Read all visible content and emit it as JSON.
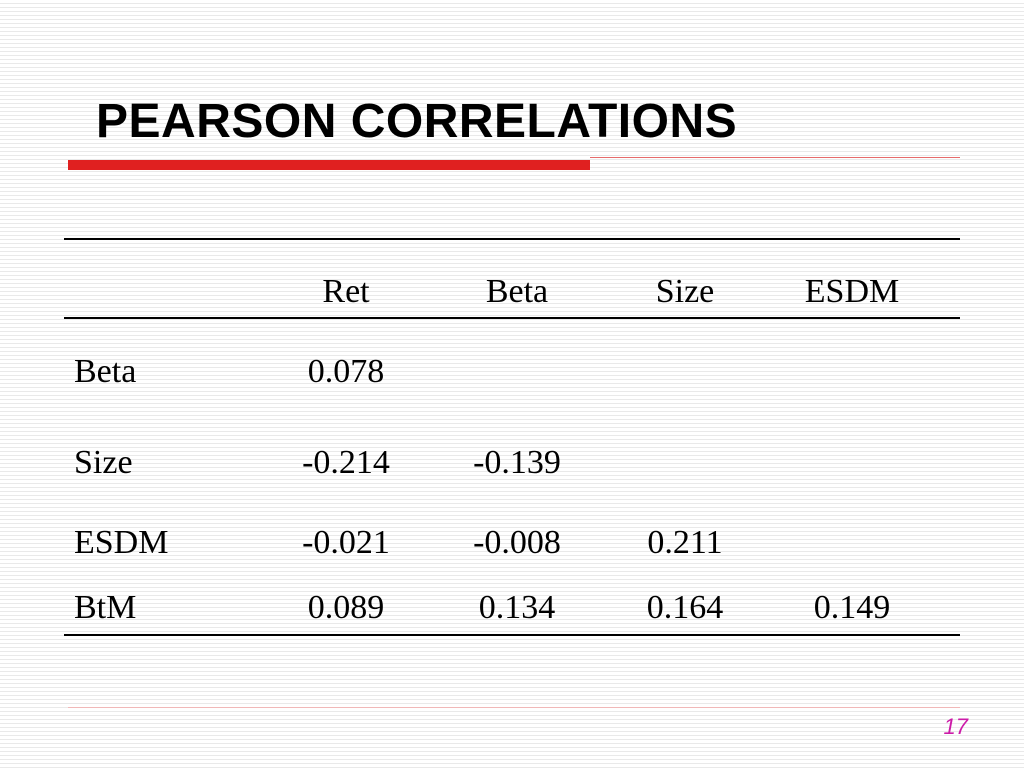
{
  "slide": {
    "title": "PEARSON CORRELATIONS",
    "page_number": "17",
    "colors": {
      "accent_red": "#e02020",
      "page_number": "#cc1ba8"
    }
  },
  "table": {
    "columns": [
      "Ret",
      "Beta",
      "Size",
      "ESDM"
    ],
    "rows": [
      {
        "label": "Beta",
        "values": [
          "0.078",
          "",
          "",
          ""
        ]
      },
      {
        "label": "Size",
        "values": [
          "-0.214",
          "-0.139",
          "",
          ""
        ]
      },
      {
        "label": "ESDM",
        "values": [
          "-0.021",
          "-0.008",
          "0.211",
          ""
        ]
      },
      {
        "label": "BtM",
        "values": [
          "0.089",
          "0.134",
          "0.164",
          "0.149"
        ]
      }
    ]
  }
}
